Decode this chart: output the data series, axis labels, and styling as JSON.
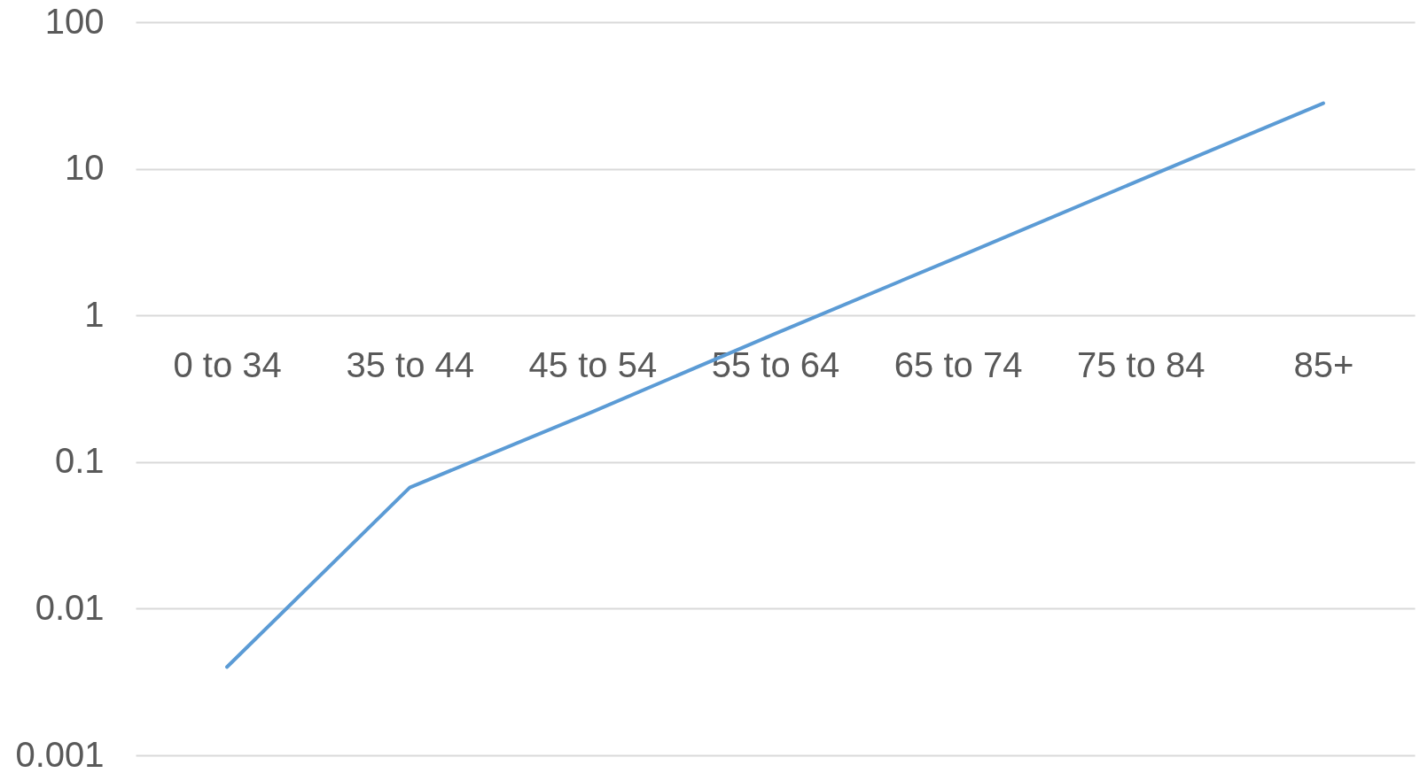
{
  "chart_data": {
    "type": "line",
    "categories": [
      "0 to 34",
      "35 to 44",
      "45 to 54",
      "55 to 64",
      "65 to 74",
      "75 to 84",
      "85+"
    ],
    "series": [
      {
        "color": "#5b9bd5",
        "values": [
          0.004,
          0.067,
          0.22,
          0.75,
          2.5,
          8.4,
          28
        ]
      }
    ],
    "log": true,
    "ylim": [
      0.001,
      100
    ],
    "yticks": [
      0.001,
      0.01,
      0.1,
      1,
      10,
      100
    ],
    "grid": "y",
    "marker": "none",
    "line_style": "solid"
  }
}
